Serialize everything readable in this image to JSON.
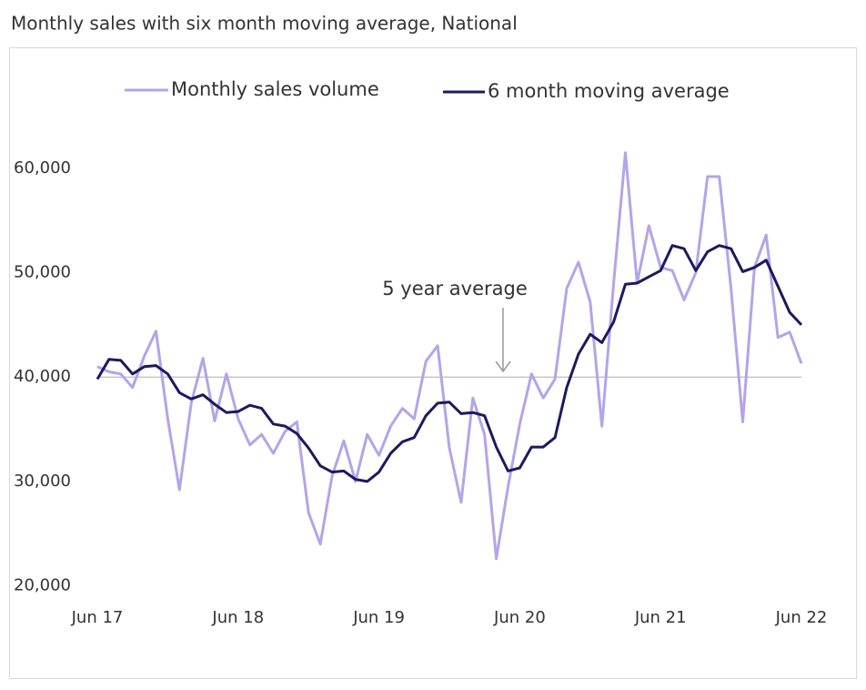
{
  "chart_data": {
    "type": "line",
    "title": "Monthly sales with six month moving average, National",
    "categories": [
      "Jun 17",
      null,
      null,
      null,
      null,
      null,
      null,
      null,
      null,
      null,
      null,
      null,
      "Jun 18",
      null,
      null,
      null,
      null,
      null,
      null,
      null,
      null,
      null,
      null,
      null,
      "Jun 19",
      null,
      null,
      null,
      null,
      null,
      null,
      null,
      null,
      null,
      null,
      null,
      "Jun 20",
      null,
      null,
      null,
      null,
      null,
      null,
      null,
      null,
      null,
      null,
      null,
      "Jun 21",
      null,
      null,
      null,
      null,
      null,
      null,
      null,
      null,
      null,
      null,
      null,
      "Jun 22"
    ],
    "series": [
      {
        "name": "Monthly sales volume",
        "color": "#b4a4e8",
        "values": [
          41000,
          40500,
          40300,
          39000,
          42000,
          44400,
          36000,
          29200,
          37500,
          41800,
          35800,
          40300,
          36000,
          33500,
          34500,
          32700,
          34800,
          35700,
          27000,
          24000,
          30500,
          33900,
          30000,
          34500,
          32500,
          35300,
          37000,
          36000,
          41500,
          43000,
          33200,
          28000,
          38000,
          34500,
          22600,
          29500,
          35500,
          40300,
          38000,
          39800,
          48500,
          51000,
          47200,
          35300,
          49000,
          61500,
          49000,
          54500,
          50500,
          50200,
          47400,
          50000,
          59200,
          59200,
          48500,
          35700,
          50500,
          53600,
          43800,
          44300,
          41300
        ]
      },
      {
        "name": "6 month moving average",
        "color": "#1c1a5e",
        "values": [
          39800,
          41700,
          41600,
          40300,
          41000,
          41100,
          40300,
          38500,
          37900,
          38300,
          37400,
          36600,
          36700,
          37300,
          37000,
          35500,
          35300,
          34600,
          33200,
          31500,
          30900,
          31000,
          30200,
          30000,
          30900,
          32700,
          33800,
          34200,
          36300,
          37500,
          37600,
          36500,
          36600,
          36300,
          33300,
          31000,
          31300,
          33300,
          33300,
          34200,
          39000,
          42200,
          44100,
          43300,
          45300,
          48900,
          49000,
          49600,
          50200,
          52600,
          52300,
          50200,
          52000,
          52600,
          52300,
          50100,
          50500,
          51200,
          48700,
          46200,
          45000
        ]
      }
    ],
    "ylim": [
      17000,
      64000
    ],
    "yticks": [
      {
        "value": 20000,
        "label": "20,000"
      },
      {
        "value": 30000,
        "label": "30,000"
      },
      {
        "value": 40000,
        "label": "40,000"
      },
      {
        "value": 50000,
        "label": "50,000"
      },
      {
        "value": 60000,
        "label": "60,000"
      }
    ],
    "reference_line": {
      "value": 40000,
      "color": "#bdbdbd",
      "annotation": "5 year average"
    },
    "legend": "top"
  }
}
